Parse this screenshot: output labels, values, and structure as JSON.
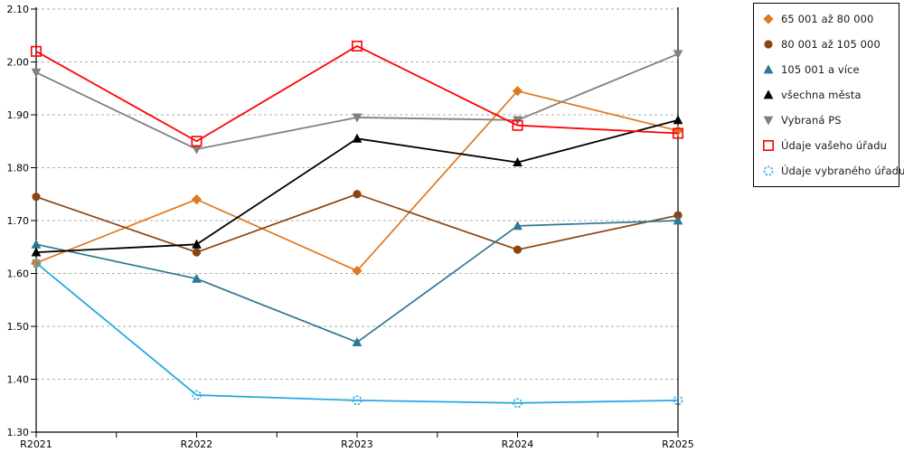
{
  "chart_data": {
    "type": "line",
    "x": [
      "R2021",
      "R2022",
      "R2023",
      "R2024",
      "R2025"
    ],
    "ylim": [
      1.3,
      2.1
    ],
    "yticks": [
      1.3,
      1.4,
      1.5,
      1.6,
      1.7,
      1.8,
      1.9,
      2.0,
      2.1
    ],
    "ytick_labels": [
      "1.30",
      "1.40",
      "1.50",
      "1.60",
      "1.70",
      "1.80",
      "1.90",
      "2.00",
      "2.10"
    ],
    "grid": "horizontal-dashed",
    "legend_position": "top-right",
    "series": [
      {
        "name": "65 001 až 80 000",
        "marker": "diamond",
        "color": "#E07820",
        "line_width": 1.7,
        "values": [
          1.62,
          1.74,
          1.605,
          1.945,
          1.87
        ]
      },
      {
        "name": "80 001 až 105 000",
        "marker": "circle",
        "color": "#8B4410",
        "line_width": 1.7,
        "values": [
          1.745,
          1.64,
          1.75,
          1.645,
          1.71
        ]
      },
      {
        "name": "105 001 a více",
        "marker": "triangle-up",
        "color": "#2F7795",
        "line_width": 1.7,
        "values": [
          1.655,
          1.59,
          1.47,
          1.69,
          1.7
        ]
      },
      {
        "name": "všechna města",
        "marker": "triangle-up",
        "color": "#000000",
        "line_width": 1.8,
        "values": [
          1.64,
          1.655,
          1.855,
          1.81,
          1.89
        ]
      },
      {
        "name": "Vybraná PS",
        "marker": "triangle-down",
        "color": "#808080",
        "line_width": 1.8,
        "values": [
          1.98,
          1.835,
          1.895,
          1.89,
          2.015
        ]
      },
      {
        "name": "Údaje vašeho úřadu",
        "marker": "square-open",
        "color": "#FF0000",
        "line_width": 1.8,
        "values": [
          2.02,
          1.85,
          2.03,
          1.88,
          1.865
        ]
      },
      {
        "name": "Údaje vybraného úřadu",
        "marker": "circle-open-dashed",
        "color": "#29A8E0",
        "line_width": 1.8,
        "values": [
          1.62,
          1.37,
          1.36,
          1.355,
          1.36
        ]
      }
    ],
    "colors": {
      "grid": "#ADADAD",
      "axis": "#000000",
      "background": "#FFFFFF",
      "tick_text": "#000000"
    }
  }
}
